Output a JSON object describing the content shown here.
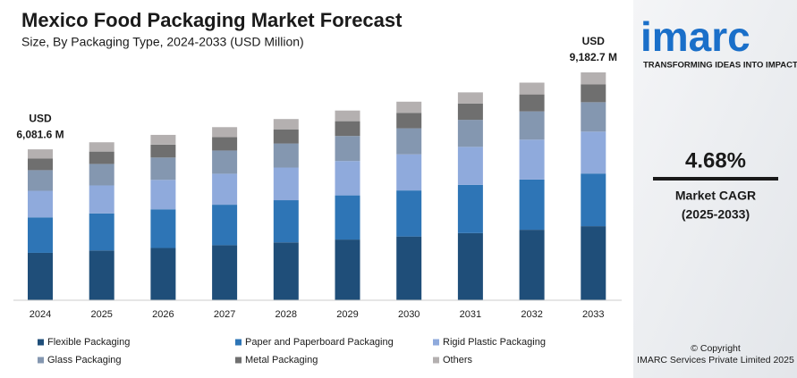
{
  "chart_data": {
    "type": "stacked_bar",
    "title": "Mexico Food Packaging Market Forecast",
    "subtitle": "Size, By Packaging Type, 2024-2033 (USD Million)",
    "categories": [
      "2024",
      "2025",
      "2026",
      "2027",
      "2028",
      "2029",
      "2030",
      "2031",
      "2032",
      "2033"
    ],
    "series": [
      {
        "name": "Flexible Packaging",
        "color": "#1f4e79",
        "values": [
          1910,
          2005,
          2106,
          2218,
          2330,
          2446,
          2569,
          2706,
          2841,
          2985
        ]
      },
      {
        "name": "Paper and Paperboard Packaging",
        "color": "#2e75b6",
        "values": [
          1430,
          1496,
          1559,
          1632,
          1702,
          1781,
          1856,
          1943,
          2026,
          2121
        ]
      },
      {
        "name": "Rigid Plastic Packaging",
        "color": "#8faadc",
        "values": [
          1070,
          1127,
          1186,
          1249,
          1315,
          1384,
          1456,
          1533,
          1605,
          1690
        ]
      },
      {
        "name": "Glass Packaging",
        "color": "#8497b0",
        "values": [
          833,
          866,
          900,
          935,
          971,
          1009,
          1048,
          1089,
          1140,
          1185
        ]
      },
      {
        "name": "Metal Packaging",
        "color": "#6f6f6f",
        "values": [
          474,
          497,
          520,
          544,
          570,
          596,
          624,
          653,
          684,
          716
        ]
      },
      {
        "name": "Others",
        "color": "#b4b0b0",
        "values": [
          364.6,
          375,
          393,
          398,
          415,
          429,
          449,
          453,
          473,
          485.7
        ]
      }
    ],
    "annotations": [
      {
        "currency": "USD",
        "total": "6,081.6 M"
      },
      {
        "currency": "USD",
        "total": "9,182.7 M"
      }
    ],
    "legend": "bottom"
  },
  "side_panel": {
    "logo": "imarc",
    "tagline": "TRANSFORMING IDEAS INTO IMPACT",
    "cagr": "4.68%",
    "cagr_label": "Market CAGR",
    "cagr_period": "(2025-2033)",
    "copyright": "© Copyright",
    "copyright_owner": "IMARC Services Private Limited 2025"
  }
}
